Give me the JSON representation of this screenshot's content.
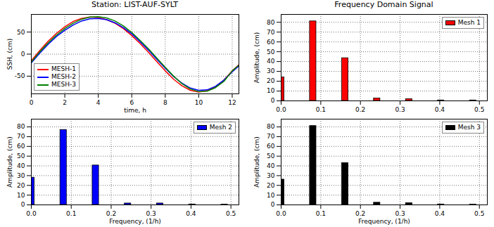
{
  "chart_data": [
    {
      "type": "line",
      "title": "Station: LIST-AUF-SYLT",
      "x_label": "time, h",
      "y_label": "SSH, (cm)",
      "x": [
        0,
        0.5,
        1,
        1.5,
        2,
        2.5,
        3,
        3.5,
        4,
        4.5,
        5,
        5.5,
        6,
        6.5,
        7,
        7.5,
        8,
        8.5,
        9,
        9.5,
        10,
        10.5,
        11,
        11.5,
        12,
        12.4
      ],
      "series": [
        {
          "name": "MESH-1",
          "color": "#ff0000",
          "values": [
            -15,
            8,
            29,
            47,
            62,
            74,
            81,
            84,
            83,
            78,
            70,
            58,
            42,
            24,
            4,
            -17,
            -38,
            -57,
            -72,
            -82,
            -86,
            -83,
            -74,
            -59,
            -38,
            -24
          ]
        },
        {
          "name": "MESH-2",
          "color": "#0000ff",
          "values": [
            -20,
            2,
            22,
            40,
            54,
            66,
            75,
            80,
            81,
            78,
            71,
            60,
            46,
            28,
            9,
            -12,
            -32,
            -51,
            -66,
            -77,
            -82,
            -81,
            -73,
            -59,
            -40,
            -27
          ]
        },
        {
          "name": "MESH-3",
          "color": "#008000",
          "values": [
            -18,
            5,
            25,
            43,
            58,
            70,
            79,
            84,
            85,
            82,
            75,
            64,
            49,
            31,
            12,
            -9,
            -30,
            -50,
            -67,
            -79,
            -85,
            -84,
            -76,
            -62,
            -38,
            -25
          ]
        }
      ],
      "xlim": [
        0,
        12.4
      ],
      "xticks": [
        0,
        2,
        4,
        6,
        8,
        10,
        12
      ],
      "ylim": [
        -90,
        90
      ],
      "yticks": [
        -50,
        0,
        50
      ],
      "grid": true,
      "legend": "lower left"
    },
    {
      "type": "bar",
      "title": "Frequency Domain Signal",
      "y_label": "Amplitude, (cm)",
      "x": [
        0,
        0.0806,
        0.1613,
        0.2419,
        0.3226,
        0.4032,
        0.4839
      ],
      "series": [
        {
          "name": "Mesh 1",
          "color": "#ff0000",
          "values": [
            24,
            81,
            43.5,
            2.5,
            1.8,
            0.5,
            0.5
          ]
        }
      ],
      "xlim": [
        0,
        0.52
      ],
      "xticks": [
        {
          "value": 0,
          "label": "0.0"
        },
        0.1,
        0.2,
        0.3,
        0.4,
        0.5
      ],
      "ylim": [
        0,
        88
      ],
      "yticks": [
        0,
        10,
        20,
        30,
        40,
        50,
        60,
        70,
        80
      ],
      "grid": true,
      "legend": "upper right"
    },
    {
      "type": "bar",
      "x_label": "Frequency, (1/h)",
      "y_label": "Amplitude, (cm)",
      "x": [
        0,
        0.0806,
        0.1613,
        0.2419,
        0.3226,
        0.4032,
        0.4839
      ],
      "series": [
        {
          "name": "Mesh 2",
          "color": "#0000ff",
          "values": [
            28,
            77,
            40.5,
            1.5,
            1.5,
            0.5,
            0.3
          ]
        }
      ],
      "xlim": [
        0,
        0.52
      ],
      "xticks": [
        {
          "value": 0,
          "label": "0.0"
        },
        0.1,
        0.2,
        0.3,
        0.4,
        0.5
      ],
      "ylim": [
        0,
        88
      ],
      "yticks": [
        0,
        10,
        20,
        30,
        40,
        50,
        60,
        70,
        80
      ],
      "grid": true,
      "legend": "upper right"
    },
    {
      "type": "bar",
      "x_label": "Frequency, (1/h)",
      "y_label": "Amplitude, (cm)",
      "x": [
        0,
        0.0806,
        0.1613,
        0.2419,
        0.3226,
        0.4032,
        0.4839
      ],
      "series": [
        {
          "name": "Mesh 3",
          "color": "#000000",
          "values": [
            26,
            81,
            43,
            2.3,
            1.8,
            0.5,
            0.4
          ]
        }
      ],
      "xlim": [
        0,
        0.52
      ],
      "xticks": [
        {
          "value": 0,
          "label": "0.0"
        },
        0.1,
        0.2,
        0.3,
        0.4,
        0.5
      ],
      "ylim": [
        0,
        88
      ],
      "yticks": [
        0,
        10,
        20,
        30,
        40,
        50,
        60,
        70,
        80
      ],
      "grid": true,
      "legend": "upper right"
    }
  ]
}
